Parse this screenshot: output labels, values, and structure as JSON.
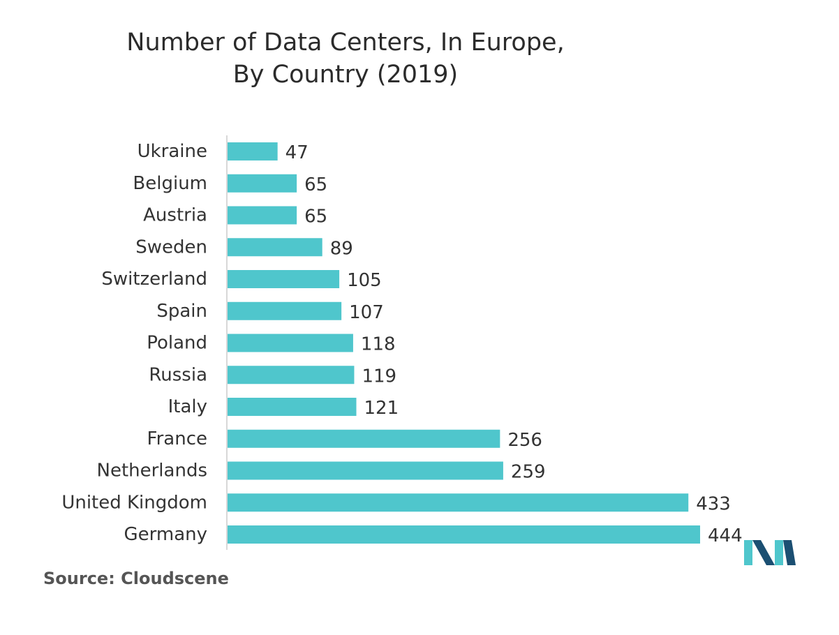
{
  "title_lines": [
    "Number of Data Centers, In Europe,",
    "By Country (2019)"
  ],
  "source": "Source: Cloudscene",
  "colors": {
    "bar": "#4fc6cc",
    "text": "#333333",
    "axis": "#cccccc",
    "logo_dark": "#1b4f72",
    "logo_light": "#4fc6cc"
  },
  "chart_data": {
    "type": "bar",
    "orientation": "horizontal",
    "title": "Number of Data Centers, In Europe, By Country (2019)",
    "categories": [
      "Ukraine",
      "Belgium",
      "Austria",
      "Sweden",
      "Switzerland",
      "Spain",
      "Poland",
      "Russia",
      "Italy",
      "France",
      "Netherlands",
      "United Kingdom",
      "Germany"
    ],
    "values": [
      47,
      65,
      65,
      89,
      105,
      107,
      118,
      119,
      121,
      256,
      259,
      433,
      444
    ],
    "xlabel": "",
    "ylabel": "",
    "xlim": [
      0,
      444
    ],
    "grid": false,
    "legend": "none",
    "data_labels": true
  }
}
